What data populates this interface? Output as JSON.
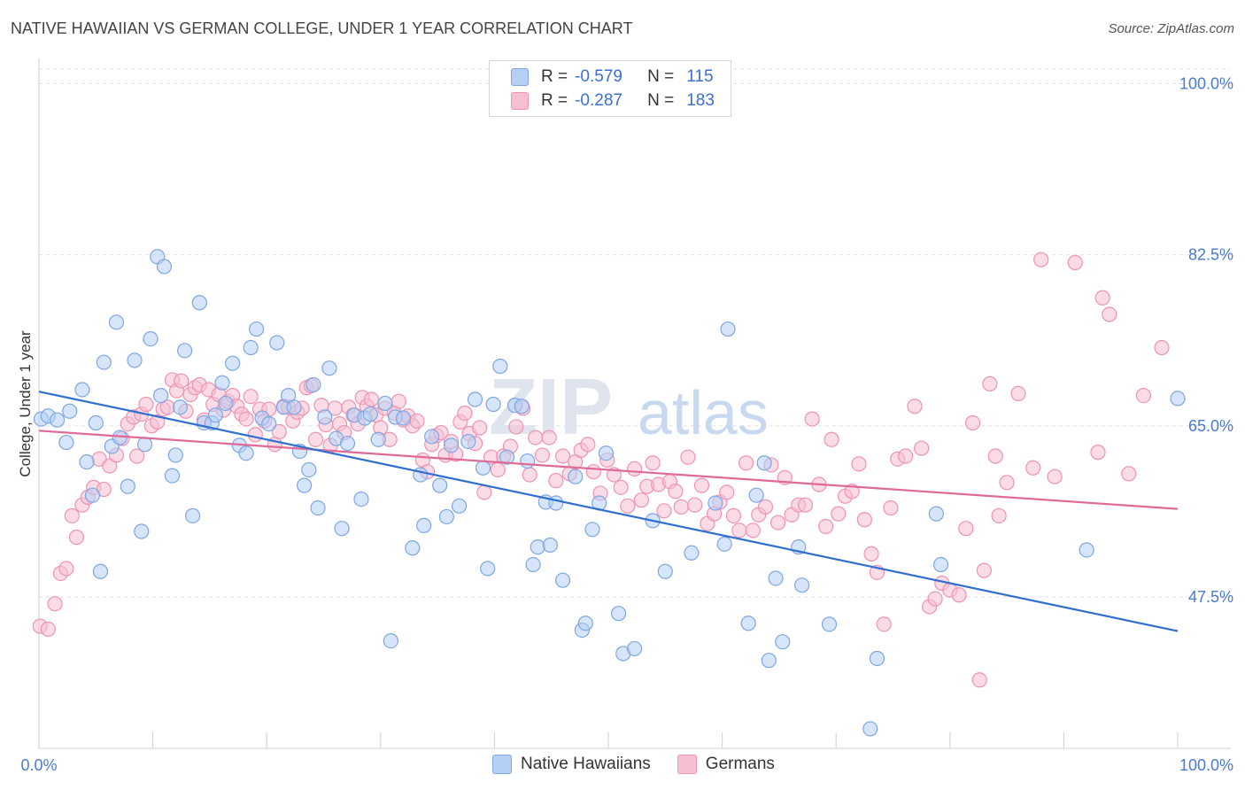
{
  "title": "NATIVE HAWAIIAN VS GERMAN COLLEGE, UNDER 1 YEAR CORRELATION CHART",
  "source": "Source: ZipAtlas.com",
  "watermark": {
    "part1": "ZIP",
    "part2": "atlas"
  },
  "colors": {
    "blue_fill": "#b5cff5",
    "blue_stroke": "#7ea6e3",
    "blue_line": "#2f6fd0",
    "pink_fill": "#f7c0d2",
    "pink_stroke": "#ee93b2",
    "pink_line": "#e06a96",
    "grid": "#e2e2e2",
    "tick_text": "#4a7bd0"
  },
  "legend": {
    "rows": [
      {
        "r_label": "R =",
        "r_value": "-0.579",
        "n_label": "N =",
        "n_value": "115"
      },
      {
        "r_label": "R =",
        "r_value": "-0.287",
        "n_label": "N =",
        "n_value": "183"
      }
    ]
  },
  "bottom_legend": {
    "series1": "Native Hawaiians",
    "series2": "Germans"
  },
  "chart_data": {
    "type": "scatter",
    "title": "NATIVE HAWAIIAN VS GERMAN COLLEGE, UNDER 1 YEAR CORRELATION CHART",
    "xlabel": "",
    "ylabel": "College, Under 1 year",
    "xlim": [
      0,
      100
    ],
    "ylim": [
      32,
      101.5
    ],
    "x_tick_labels": [
      "0.0%",
      "100.0%"
    ],
    "y_ticks": [
      {
        "value": 100.0,
        "label": "100.0%"
      },
      {
        "value": 82.5,
        "label": "82.5%"
      },
      {
        "value": 65.0,
        "label": "65.0%"
      },
      {
        "value": 47.5,
        "label": "47.5%"
      }
    ],
    "grid": true,
    "series": [
      {
        "name": "Native Hawaiians",
        "r": -0.579,
        "n": 115,
        "trend": {
          "x": [
            0,
            100
          ],
          "y": [
            68.5,
            44.0
          ]
        },
        "points": [
          [
            0.2,
            65.7
          ],
          [
            0.8,
            66.0
          ],
          [
            1.6,
            65.6
          ],
          [
            2.4,
            63.3
          ],
          [
            2.7,
            66.5
          ],
          [
            3.8,
            68.7
          ],
          [
            4.2,
            61.3
          ],
          [
            4.7,
            57.9
          ],
          [
            5.0,
            65.3
          ],
          [
            5.4,
            50.1
          ],
          [
            5.7,
            71.5
          ],
          [
            6.4,
            62.9
          ],
          [
            6.8,
            75.6
          ],
          [
            7.1,
            63.8
          ],
          [
            7.8,
            58.8
          ],
          [
            8.4,
            71.7
          ],
          [
            9.0,
            54.2
          ],
          [
            9.3,
            63.1
          ],
          [
            9.8,
            73.9
          ],
          [
            10.4,
            82.3
          ],
          [
            10.7,
            68.1
          ],
          [
            11.0,
            81.3
          ],
          [
            11.7,
            59.9
          ],
          [
            12.0,
            62.0
          ],
          [
            12.4,
            66.9
          ],
          [
            12.8,
            72.7
          ],
          [
            13.5,
            55.8
          ],
          [
            14.1,
            77.6
          ],
          [
            14.5,
            65.3
          ],
          [
            15.2,
            65.3
          ],
          [
            15.5,
            66.1
          ],
          [
            16.1,
            69.4
          ],
          [
            16.4,
            67.3
          ],
          [
            17.0,
            71.4
          ],
          [
            17.6,
            63.0
          ],
          [
            18.2,
            62.2
          ],
          [
            18.6,
            73.0
          ],
          [
            19.1,
            74.9
          ],
          [
            19.6,
            65.8
          ],
          [
            20.2,
            65.2
          ],
          [
            20.9,
            73.5
          ],
          [
            21.5,
            66.9
          ],
          [
            21.9,
            68.1
          ],
          [
            22.4,
            66.9
          ],
          [
            22.9,
            62.4
          ],
          [
            23.3,
            58.9
          ],
          [
            23.7,
            60.5
          ],
          [
            24.1,
            69.2
          ],
          [
            24.5,
            56.6
          ],
          [
            25.1,
            65.9
          ],
          [
            25.5,
            70.9
          ],
          [
            26.1,
            63.7
          ],
          [
            26.6,
            54.5
          ],
          [
            27.1,
            63.2
          ],
          [
            27.7,
            66.1
          ],
          [
            28.3,
            57.5
          ],
          [
            28.6,
            65.8
          ],
          [
            29.1,
            66.2
          ],
          [
            29.8,
            63.6
          ],
          [
            30.4,
            67.3
          ],
          [
            30.9,
            43.0
          ],
          [
            31.3,
            65.9
          ],
          [
            32.0,
            65.8
          ],
          [
            32.8,
            52.5
          ],
          [
            33.5,
            60.0
          ],
          [
            33.8,
            54.8
          ],
          [
            34.5,
            63.9
          ],
          [
            35.2,
            58.9
          ],
          [
            35.8,
            55.7
          ],
          [
            36.2,
            63.0
          ],
          [
            36.9,
            56.8
          ],
          [
            37.7,
            63.4
          ],
          [
            38.3,
            67.7
          ],
          [
            39.0,
            60.7
          ],
          [
            39.4,
            50.4
          ],
          [
            39.9,
            67.2
          ],
          [
            40.5,
            71.1
          ],
          [
            41.1,
            61.8
          ],
          [
            41.8,
            67.1
          ],
          [
            42.4,
            67.0
          ],
          [
            42.9,
            61.4
          ],
          [
            43.4,
            50.8
          ],
          [
            43.8,
            52.6
          ],
          [
            44.5,
            57.2
          ],
          [
            44.9,
            52.8
          ],
          [
            45.4,
            57.1
          ],
          [
            46.0,
            49.2
          ],
          [
            47.1,
            59.8
          ],
          [
            47.7,
            44.1
          ],
          [
            48.0,
            44.8
          ],
          [
            48.6,
            54.4
          ],
          [
            49.2,
            57.1
          ],
          [
            49.8,
            62.2
          ],
          [
            50.9,
            45.8
          ],
          [
            51.3,
            41.7
          ],
          [
            52.3,
            42.2
          ],
          [
            53.9,
            55.3
          ],
          [
            55.0,
            50.1
          ],
          [
            57.3,
            52.0
          ],
          [
            59.4,
            57.1
          ],
          [
            60.2,
            52.9
          ],
          [
            60.5,
            74.9
          ],
          [
            62.3,
            44.8
          ],
          [
            63.0,
            57.9
          ],
          [
            63.7,
            61.2
          ],
          [
            64.7,
            49.4
          ],
          [
            65.3,
            42.9
          ],
          [
            64.1,
            41.0
          ],
          [
            66.7,
            52.6
          ],
          [
            67.0,
            48.7
          ],
          [
            69.4,
            44.7
          ],
          [
            73.0,
            34.0
          ],
          [
            73.6,
            41.2
          ],
          [
            78.8,
            56.0
          ],
          [
            79.2,
            50.8
          ],
          [
            92.0,
            52.3
          ],
          [
            100.0,
            67.8
          ]
        ]
      },
      {
        "name": "Germans",
        "r": -0.287,
        "n": 183,
        "trend": {
          "x": [
            0,
            100
          ],
          "y": [
            64.5,
            56.5
          ]
        },
        "points": [
          [
            0.1,
            44.5
          ],
          [
            0.8,
            44.2
          ],
          [
            1.4,
            46.8
          ],
          [
            1.9,
            49.9
          ],
          [
            2.4,
            50.4
          ],
          [
            2.9,
            55.8
          ],
          [
            3.3,
            53.6
          ],
          [
            3.8,
            56.9
          ],
          [
            4.3,
            57.7
          ],
          [
            4.8,
            58.7
          ],
          [
            5.3,
            61.6
          ],
          [
            5.7,
            58.5
          ],
          [
            6.2,
            60.9
          ],
          [
            6.8,
            62.0
          ],
          [
            7.3,
            63.7
          ],
          [
            7.8,
            65.2
          ],
          [
            8.3,
            65.9
          ],
          [
            8.6,
            61.9
          ],
          [
            9.0,
            66.2
          ],
          [
            9.4,
            67.2
          ],
          [
            9.9,
            65.0
          ],
          [
            10.4,
            65.4
          ],
          [
            10.9,
            66.7
          ],
          [
            11.3,
            66.9
          ],
          [
            11.7,
            69.7
          ],
          [
            12.1,
            68.6
          ],
          [
            12.5,
            69.6
          ],
          [
            12.9,
            66.5
          ],
          [
            13.3,
            68.2
          ],
          [
            13.7,
            68.9
          ],
          [
            14.1,
            69.2
          ],
          [
            14.5,
            65.6
          ],
          [
            14.9,
            68.7
          ],
          [
            15.3,
            67.2
          ],
          [
            15.8,
            68.2
          ],
          [
            16.2,
            66.6
          ],
          [
            16.6,
            67.5
          ],
          [
            17.0,
            68.1
          ],
          [
            17.4,
            67.0
          ],
          [
            17.8,
            66.2
          ],
          [
            18.2,
            65.7
          ],
          [
            18.6,
            68.0
          ],
          [
            19.0,
            64.1
          ],
          [
            19.4,
            66.7
          ],
          [
            19.8,
            65.5
          ],
          [
            20.2,
            66.7
          ],
          [
            20.7,
            63.1
          ],
          [
            21.1,
            64.4
          ],
          [
            21.5,
            67.0
          ],
          [
            21.9,
            66.9
          ],
          [
            22.3,
            65.5
          ],
          [
            22.7,
            66.4
          ],
          [
            23.1,
            66.8
          ],
          [
            23.5,
            68.9
          ],
          [
            23.9,
            69.1
          ],
          [
            24.3,
            63.6
          ],
          [
            24.8,
            67.1
          ],
          [
            25.2,
            65.1
          ],
          [
            25.6,
            63.0
          ],
          [
            26.0,
            66.8
          ],
          [
            26.4,
            65.2
          ],
          [
            26.8,
            64.3
          ],
          [
            27.2,
            66.9
          ],
          [
            27.6,
            66.1
          ],
          [
            28.0,
            65.2
          ],
          [
            28.4,
            67.9
          ],
          [
            28.8,
            67.0
          ],
          [
            29.2,
            67.7
          ],
          [
            29.6,
            66.1
          ],
          [
            30.0,
            64.8
          ],
          [
            30.4,
            66.8
          ],
          [
            30.8,
            63.6
          ],
          [
            31.2,
            66.3
          ],
          [
            31.6,
            67.5
          ],
          [
            32.0,
            65.6
          ],
          [
            32.4,
            66.0
          ],
          [
            32.8,
            65.0
          ],
          [
            33.2,
            65.5
          ],
          [
            33.7,
            61.5
          ],
          [
            34.1,
            60.3
          ],
          [
            34.5,
            63.1
          ],
          [
            34.9,
            64.0
          ],
          [
            35.3,
            64.3
          ],
          [
            35.7,
            62.0
          ],
          [
            36.2,
            63.4
          ],
          [
            36.6,
            62.1
          ],
          [
            37.0,
            65.4
          ],
          [
            37.4,
            66.3
          ],
          [
            37.8,
            64.2
          ],
          [
            38.3,
            63.2
          ],
          [
            38.7,
            64.8
          ],
          [
            39.1,
            58.2
          ],
          [
            39.7,
            61.8
          ],
          [
            40.3,
            60.5
          ],
          [
            40.8,
            61.9
          ],
          [
            41.4,
            62.9
          ],
          [
            41.9,
            64.9
          ],
          [
            42.5,
            66.8
          ],
          [
            43.1,
            60.0
          ],
          [
            43.6,
            63.8
          ],
          [
            44.2,
            62.0
          ],
          [
            44.8,
            63.8
          ],
          [
            45.4,
            59.4
          ],
          [
            46.0,
            61.9
          ],
          [
            46.6,
            60.1
          ],
          [
            47.1,
            61.3
          ],
          [
            47.6,
            62.5
          ],
          [
            48.2,
            63.1
          ],
          [
            48.7,
            60.3
          ],
          [
            49.3,
            58.1
          ],
          [
            49.9,
            61.5
          ],
          [
            50.5,
            60.0
          ],
          [
            51.1,
            58.7
          ],
          [
            51.7,
            56.8
          ],
          [
            52.3,
            60.6
          ],
          [
            52.9,
            57.4
          ],
          [
            53.4,
            58.8
          ],
          [
            53.9,
            61.2
          ],
          [
            54.4,
            59.0
          ],
          [
            54.9,
            56.3
          ],
          [
            55.4,
            59.3
          ],
          [
            55.9,
            58.3
          ],
          [
            56.4,
            56.7
          ],
          [
            57.0,
            61.8
          ],
          [
            57.6,
            56.9
          ],
          [
            58.2,
            58.9
          ],
          [
            58.7,
            55.0
          ],
          [
            59.3,
            56.0
          ],
          [
            59.8,
            57.2
          ],
          [
            60.4,
            58.2
          ],
          [
            61.0,
            55.8
          ],
          [
            61.5,
            54.3
          ],
          [
            62.1,
            61.2
          ],
          [
            62.7,
            54.3
          ],
          [
            63.2,
            55.9
          ],
          [
            63.8,
            56.7
          ],
          [
            64.3,
            61.0
          ],
          [
            64.9,
            55.1
          ],
          [
            65.5,
            59.7
          ],
          [
            66.1,
            55.9
          ],
          [
            66.7,
            56.9
          ],
          [
            67.3,
            56.9
          ],
          [
            67.9,
            65.7
          ],
          [
            68.5,
            59.0
          ],
          [
            69.1,
            54.7
          ],
          [
            69.6,
            63.6
          ],
          [
            70.2,
            56.0
          ],
          [
            70.8,
            57.8
          ],
          [
            71.4,
            58.3
          ],
          [
            72.0,
            61.1
          ],
          [
            72.5,
            55.4
          ],
          [
            73.1,
            51.9
          ],
          [
            73.6,
            50.0
          ],
          [
            74.2,
            44.7
          ],
          [
            74.8,
            56.6
          ],
          [
            75.4,
            61.6
          ],
          [
            76.1,
            61.9
          ],
          [
            76.9,
            67.0
          ],
          [
            77.5,
            62.7
          ],
          [
            78.2,
            46.5
          ],
          [
            78.7,
            47.3
          ],
          [
            79.3,
            48.9
          ],
          [
            80.0,
            48.2
          ],
          [
            80.8,
            47.7
          ],
          [
            81.4,
            54.5
          ],
          [
            82.0,
            65.3
          ],
          [
            82.6,
            39.0
          ],
          [
            83.0,
            50.2
          ],
          [
            83.5,
            69.3
          ],
          [
            84.0,
            61.9
          ],
          [
            84.3,
            55.8
          ],
          [
            85.0,
            59.2
          ],
          [
            86.0,
            68.3
          ],
          [
            87.3,
            60.7
          ],
          [
            88.0,
            82.0
          ],
          [
            89.2,
            59.8
          ],
          [
            91.0,
            81.7
          ],
          [
            93.0,
            62.3
          ],
          [
            93.4,
            78.1
          ],
          [
            94.0,
            76.4
          ],
          [
            95.7,
            60.1
          ],
          [
            97.0,
            68.1
          ],
          [
            98.6,
            73.0
          ]
        ]
      }
    ]
  }
}
